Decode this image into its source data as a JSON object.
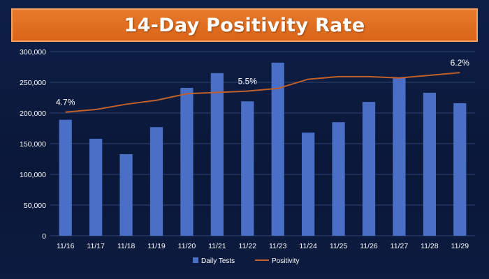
{
  "slide": {
    "title": "14-Day Positivity Rate"
  },
  "chart_data": {
    "type": "bar",
    "categories": [
      "11/16",
      "11/17",
      "11/18",
      "11/19",
      "11/20",
      "11/21",
      "11/22",
      "11/23",
      "11/24",
      "11/25",
      "11/26",
      "11/27",
      "11/28",
      "11/29"
    ],
    "series": [
      {
        "name": "Daily Tests",
        "type": "bar",
        "axis": "left",
        "color": "#4a6fc7",
        "values": [
          189000,
          158000,
          133000,
          177000,
          241000,
          265000,
          219000,
          282000,
          168000,
          185000,
          218000,
          257000,
          233000,
          216000
        ]
      },
      {
        "name": "Positivity",
        "type": "line",
        "axis": "right",
        "color": "#c0602a",
        "values": [
          4.7,
          4.8,
          5.0,
          5.15,
          5.4,
          5.45,
          5.5,
          5.6,
          5.95,
          6.05,
          6.05,
          6.0,
          6.1,
          6.2
        ]
      }
    ],
    "ylim": [
      0,
      300000
    ],
    "yticks": [
      "300,000",
      "250,000",
      "200,000",
      "150,000",
      "100,000",
      "50,000",
      "0"
    ],
    "secondary_ylim": [
      0,
      7.0
    ],
    "annotations": [
      {
        "label": "4.7%",
        "index": 0
      },
      {
        "label": "5.5%",
        "index": 6
      },
      {
        "label": "6.2%",
        "index": 13
      }
    ],
    "legend": {
      "position": "bottom",
      "items": [
        "Daily Tests",
        "Positivity"
      ]
    },
    "grid": true
  }
}
